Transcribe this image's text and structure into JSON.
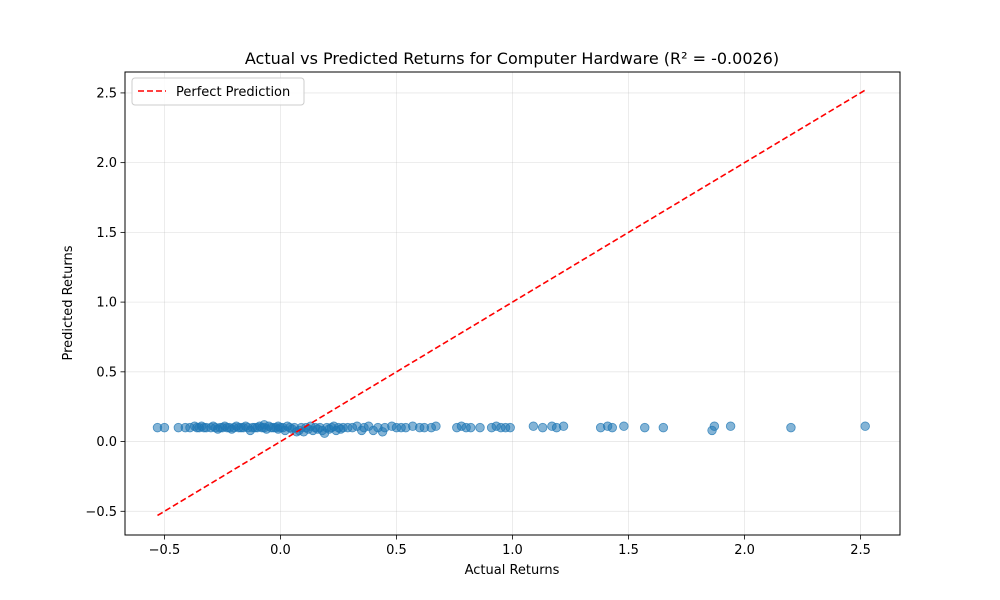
{
  "chart_data": {
    "type": "scatter",
    "title": "Actual vs Predicted Returns for Computer Hardware (R² = -0.0026)",
    "xlabel": "Actual Returns",
    "ylabel": "Predicted Returns",
    "xlim": [
      -0.67,
      2.67
    ],
    "ylim": [
      -0.67,
      2.65
    ],
    "xticks": [
      -0.5,
      0.0,
      0.5,
      1.0,
      1.5,
      2.0,
      2.5
    ],
    "xtick_labels": [
      "−0.5",
      "0.0",
      "0.5",
      "1.0",
      "1.5",
      "2.0",
      "2.5"
    ],
    "yticks": [
      -0.5,
      0.0,
      0.5,
      1.0,
      1.5,
      2.0,
      2.5
    ],
    "ytick_labels": [
      "−0.5",
      "0.0",
      "0.5",
      "1.0",
      "1.5",
      "2.0",
      "2.5"
    ],
    "grid": true,
    "legend_position": "top-left",
    "colors": {
      "points": "#1f77b4",
      "reference_line": "#ff0000"
    },
    "series": [
      {
        "type": "scatter",
        "points": [
          [
            -0.53,
            0.1
          ],
          [
            -0.5,
            0.1
          ],
          [
            -0.44,
            0.1
          ],
          [
            -0.41,
            0.1
          ],
          [
            -0.39,
            0.1
          ],
          [
            -0.37,
            0.11
          ],
          [
            -0.36,
            0.1
          ],
          [
            -0.35,
            0.1
          ],
          [
            -0.34,
            0.11
          ],
          [
            -0.33,
            0.1
          ],
          [
            -0.32,
            0.1
          ],
          [
            -0.3,
            0.1
          ],
          [
            -0.29,
            0.11
          ],
          [
            -0.28,
            0.1
          ],
          [
            -0.27,
            0.09
          ],
          [
            -0.26,
            0.1
          ],
          [
            -0.25,
            0.1
          ],
          [
            -0.24,
            0.11
          ],
          [
            -0.23,
            0.1
          ],
          [
            -0.22,
            0.1
          ],
          [
            -0.21,
            0.09
          ],
          [
            -0.2,
            0.1
          ],
          [
            -0.19,
            0.11
          ],
          [
            -0.18,
            0.1
          ],
          [
            -0.17,
            0.1
          ],
          [
            -0.16,
            0.1
          ],
          [
            -0.15,
            0.11
          ],
          [
            -0.14,
            0.1
          ],
          [
            -0.13,
            0.08
          ],
          [
            -0.12,
            0.1
          ],
          [
            -0.11,
            0.1
          ],
          [
            -0.1,
            0.1
          ],
          [
            -0.09,
            0.11
          ],
          [
            -0.08,
            0.1
          ],
          [
            -0.07,
            0.12
          ],
          [
            -0.07,
            0.1
          ],
          [
            -0.06,
            0.09
          ],
          [
            -0.05,
            0.11
          ],
          [
            -0.04,
            0.1
          ],
          [
            -0.03,
            0.1
          ],
          [
            -0.02,
            0.1
          ],
          [
            -0.01,
            0.11
          ],
          [
            -0.01,
            0.09
          ],
          [
            0.0,
            0.1
          ],
          [
            0.01,
            0.1
          ],
          [
            0.02,
            0.08
          ],
          [
            0.03,
            0.11
          ],
          [
            0.04,
            0.1
          ],
          [
            0.05,
            0.09
          ],
          [
            0.06,
            0.1
          ],
          [
            0.07,
            0.07
          ],
          [
            0.08,
            0.08
          ],
          [
            0.09,
            0.1
          ],
          [
            0.1,
            0.07
          ],
          [
            0.11,
            0.1
          ],
          [
            0.12,
            0.09
          ],
          [
            0.13,
            0.11
          ],
          [
            0.14,
            0.08
          ],
          [
            0.15,
            0.1
          ],
          [
            0.16,
            0.09
          ],
          [
            0.17,
            0.1
          ],
          [
            0.18,
            0.08
          ],
          [
            0.19,
            0.06
          ],
          [
            0.2,
            0.1
          ],
          [
            0.21,
            0.09
          ],
          [
            0.22,
            0.1
          ],
          [
            0.23,
            0.11
          ],
          [
            0.24,
            0.08
          ],
          [
            0.25,
            0.1
          ],
          [
            0.26,
            0.09
          ],
          [
            0.27,
            0.1
          ],
          [
            0.29,
            0.1
          ],
          [
            0.31,
            0.1
          ],
          [
            0.33,
            0.11
          ],
          [
            0.35,
            0.08
          ],
          [
            0.36,
            0.1
          ],
          [
            0.38,
            0.11
          ],
          [
            0.4,
            0.08
          ],
          [
            0.42,
            0.1
          ],
          [
            0.44,
            0.07
          ],
          [
            0.45,
            0.1
          ],
          [
            0.48,
            0.11
          ],
          [
            0.5,
            0.1
          ],
          [
            0.52,
            0.1
          ],
          [
            0.54,
            0.1
          ],
          [
            0.57,
            0.11
          ],
          [
            0.6,
            0.1
          ],
          [
            0.62,
            0.1
          ],
          [
            0.65,
            0.1
          ],
          [
            0.67,
            0.11
          ],
          [
            0.76,
            0.1
          ],
          [
            0.78,
            0.11
          ],
          [
            0.8,
            0.1
          ],
          [
            0.82,
            0.1
          ],
          [
            0.86,
            0.1
          ],
          [
            0.91,
            0.1
          ],
          [
            0.93,
            0.11
          ],
          [
            0.95,
            0.1
          ],
          [
            0.97,
            0.1
          ],
          [
            0.99,
            0.1
          ],
          [
            1.09,
            0.11
          ],
          [
            1.13,
            0.1
          ],
          [
            1.17,
            0.11
          ],
          [
            1.19,
            0.1
          ],
          [
            1.22,
            0.11
          ],
          [
            1.38,
            0.1
          ],
          [
            1.41,
            0.11
          ],
          [
            1.43,
            0.1
          ],
          [
            1.48,
            0.11
          ],
          [
            1.57,
            0.1
          ],
          [
            1.65,
            0.1
          ],
          [
            1.86,
            0.08
          ],
          [
            1.87,
            0.11
          ],
          [
            1.94,
            0.11
          ],
          [
            2.2,
            0.1
          ],
          [
            2.52,
            0.11
          ]
        ]
      },
      {
        "name": "Perfect Prediction",
        "type": "line",
        "style": "dashed",
        "x": [
          -0.53,
          2.52
        ],
        "y": [
          -0.53,
          2.52
        ]
      }
    ]
  }
}
